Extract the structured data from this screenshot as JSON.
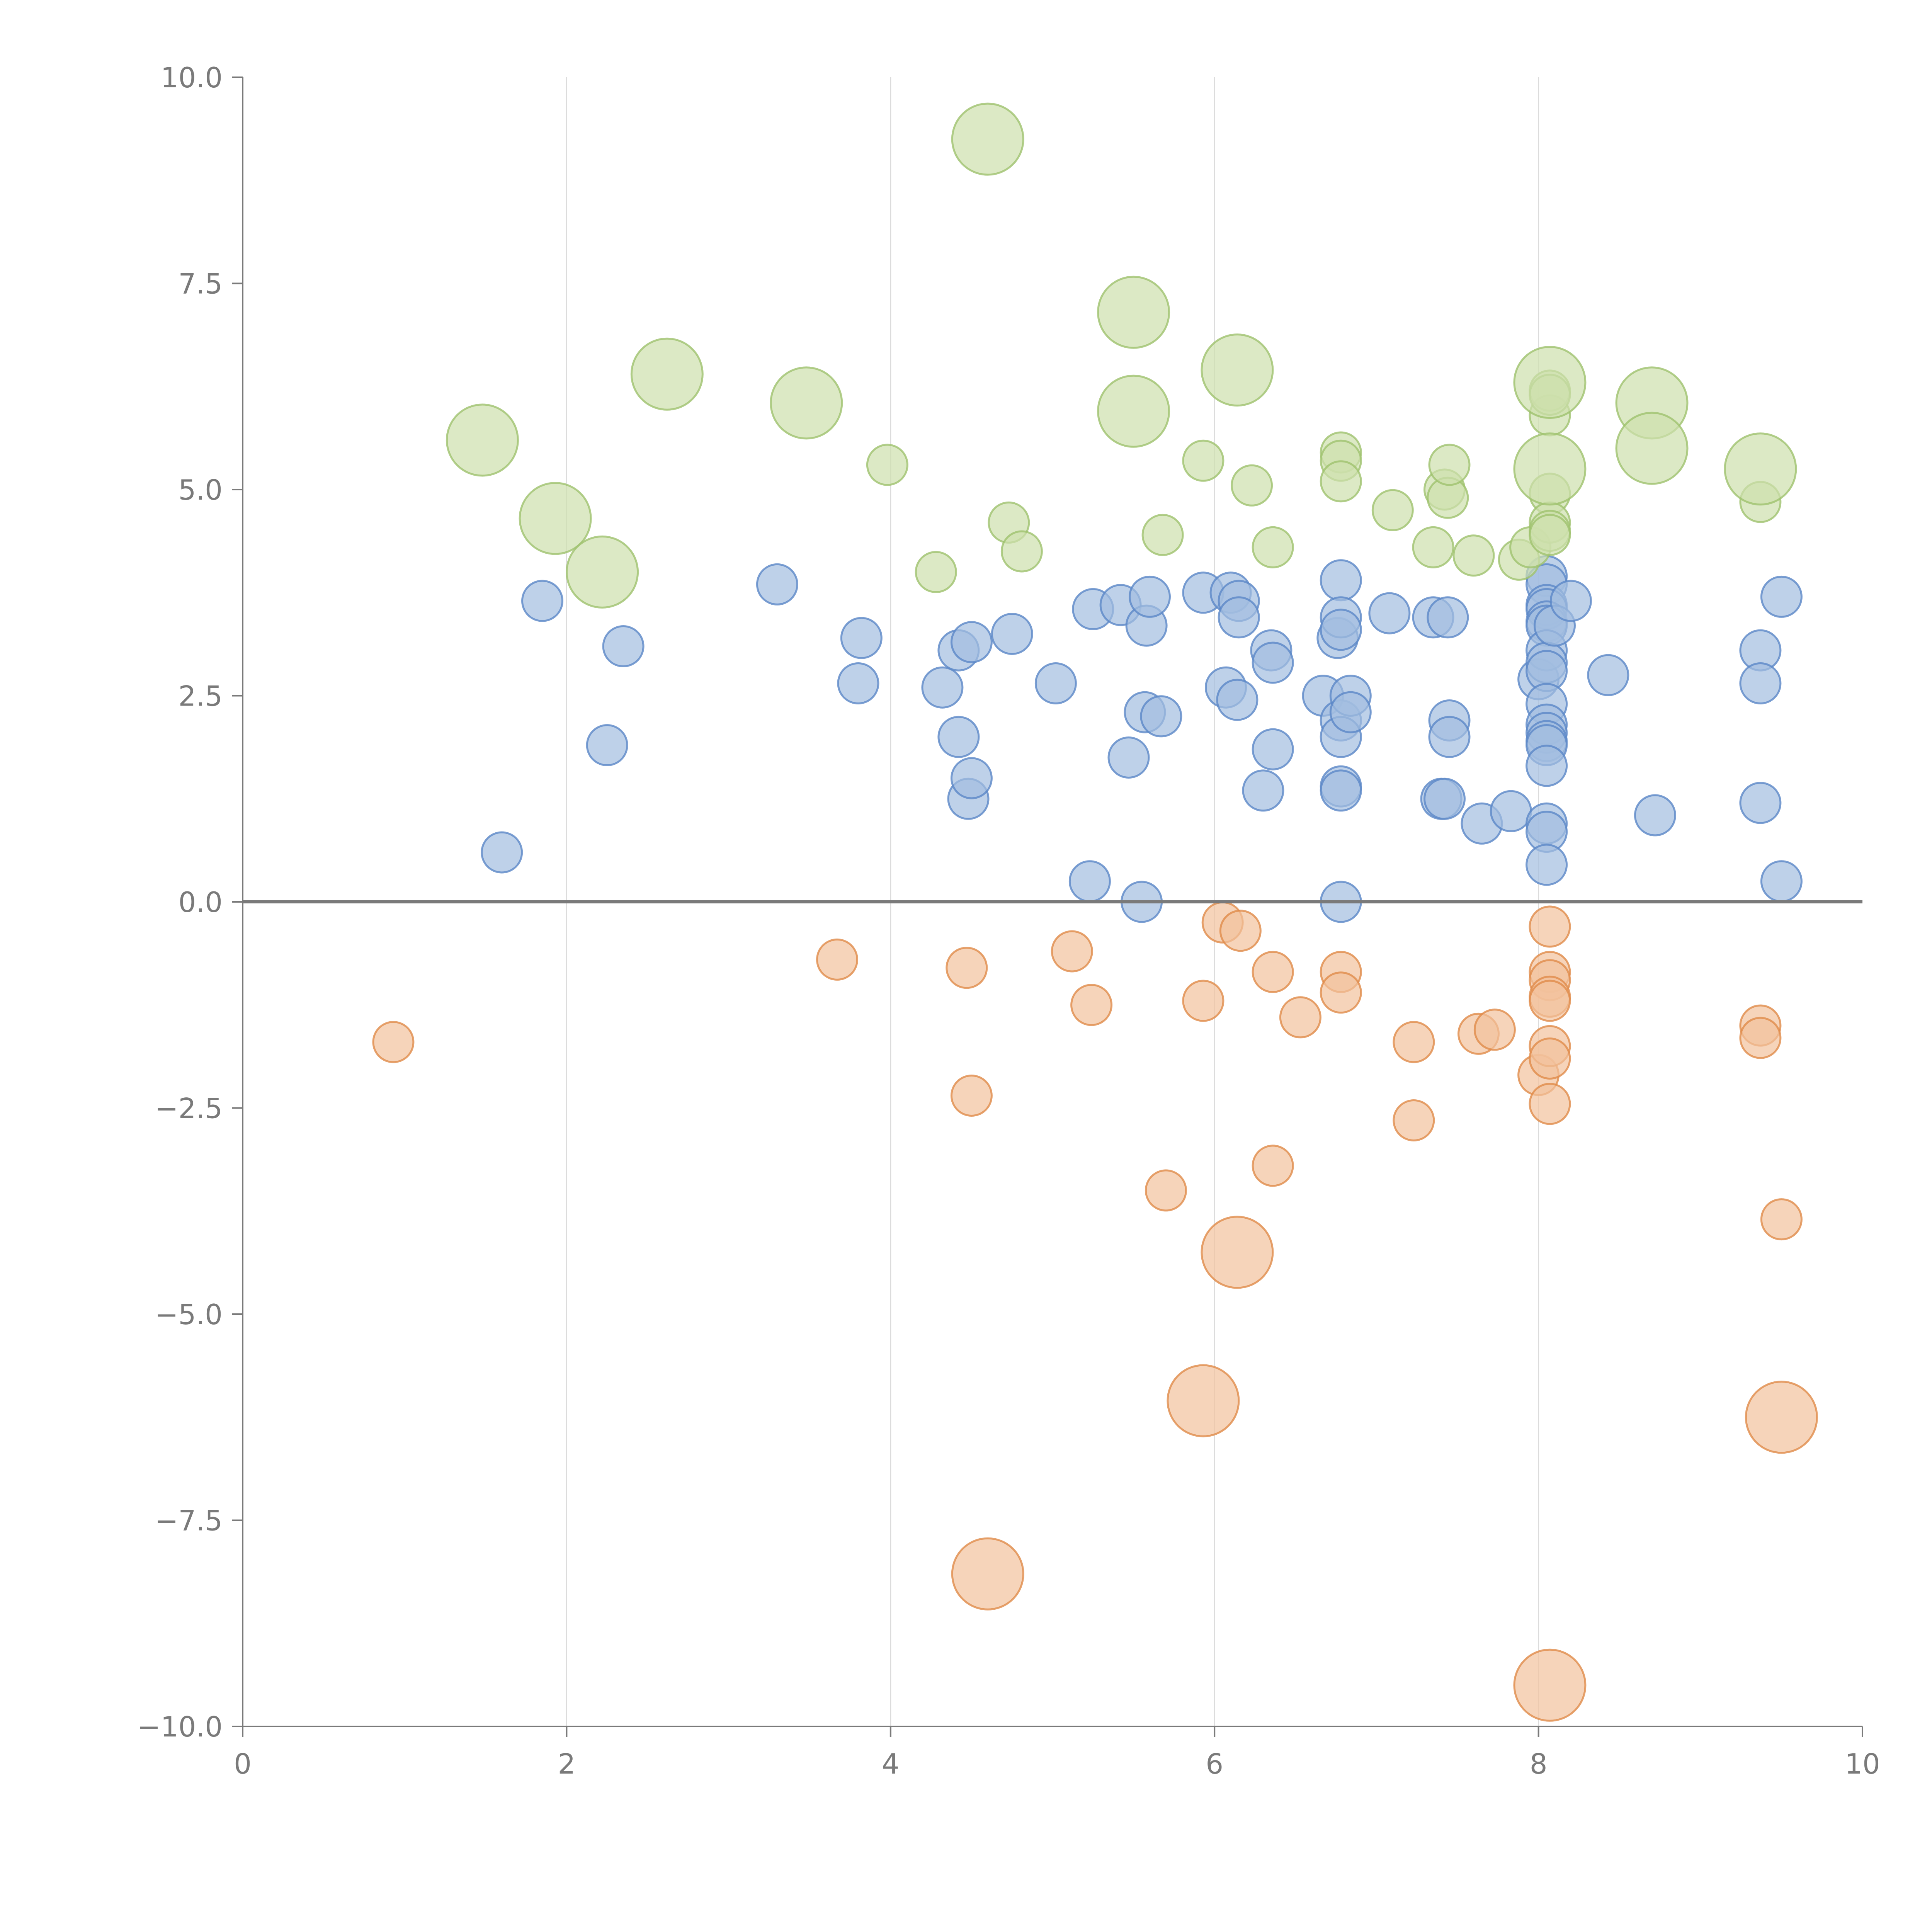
{
  "chart_data": {
    "type": "scatter",
    "title": "",
    "xlabel": "",
    "ylabel": "",
    "xlim": [
      0,
      10
    ],
    "ylim": [
      -10,
      10
    ],
    "grid": "vertical",
    "legend": "none",
    "x_ticks": [
      0,
      2,
      4,
      6,
      8,
      10
    ],
    "x_tick_labels": [
      "0",
      "2",
      "4",
      "6",
      "8",
      "10"
    ],
    "y_ticks": [
      10,
      7.5,
      5,
      2.5,
      0,
      -2.5,
      -5,
      -7.5,
      -10
    ],
    "y_tick_labels": [
      "10.0",
      "7.5",
      "5.0",
      "2.5",
      "0.0",
      "−2.5",
      "−5.0",
      "−7.5",
      "−10.0"
    ],
    "reference_line_y": 0,
    "colors": {
      "positive_fill": "#a3bddf",
      "positive_stroke": "#5b87c7",
      "upper_fill": "#cde0ad",
      "upper_stroke": "#9fc26e",
      "negative_fill": "#f2c29c",
      "negative_stroke": "#e08b4a",
      "axis": "#7a7a7a",
      "grid": "#dcdcdc"
    },
    "series": [
      {
        "name": "positive",
        "color_key": "positive",
        "size": "small",
        "points": [
          [
            1.6,
            0.6
          ],
          [
            1.85,
            3.65
          ],
          [
            2.25,
            1.9
          ],
          [
            2.35,
            3.1
          ],
          [
            3.3,
            3.85
          ],
          [
            3.8,
            2.65
          ],
          [
            3.82,
            3.2
          ],
          [
            4.32,
            2.6
          ],
          [
            4.42,
            3.05
          ],
          [
            4.42,
            2.0
          ],
          [
            4.48,
            1.25
          ],
          [
            4.5,
            1.5
          ],
          [
            4.5,
            3.15
          ],
          [
            4.75,
            3.25
          ],
          [
            5.02,
            2.65
          ],
          [
            5.23,
            0.25
          ],
          [
            5.25,
            3.55
          ],
          [
            5.42,
            3.6
          ],
          [
            5.47,
            1.75
          ],
          [
            5.55,
            0.0
          ],
          [
            5.57,
            2.3
          ],
          [
            5.58,
            3.35
          ],
          [
            5.6,
            3.7
          ],
          [
            5.67,
            2.25
          ],
          [
            5.93,
            3.75
          ],
          [
            6.07,
            2.6
          ],
          [
            6.1,
            3.75
          ],
          [
            6.14,
            2.45
          ],
          [
            6.15,
            3.65
          ],
          [
            6.15,
            3.45
          ],
          [
            6.3,
            1.35
          ],
          [
            6.35,
            3.05
          ],
          [
            6.36,
            2.9
          ],
          [
            6.36,
            1.85
          ],
          [
            6.67,
            2.5
          ],
          [
            6.76,
            3.2
          ],
          [
            6.78,
            3.9
          ],
          [
            6.78,
            3.45
          ],
          [
            6.78,
            3.3
          ],
          [
            6.78,
            2.2
          ],
          [
            6.78,
            2.0
          ],
          [
            6.78,
            1.4
          ],
          [
            6.78,
            1.35
          ],
          [
            6.78,
            0.0
          ],
          [
            6.84,
            2.5
          ],
          [
            6.84,
            2.3
          ],
          [
            7.08,
            3.5
          ],
          [
            7.35,
            3.45
          ],
          [
            7.4,
            1.25
          ],
          [
            7.42,
            1.25
          ],
          [
            7.44,
            3.45
          ],
          [
            7.45,
            2.2
          ],
          [
            7.45,
            2.0
          ],
          [
            7.65,
            0.95
          ],
          [
            7.83,
            1.1
          ],
          [
            8.0,
            2.7
          ],
          [
            8.05,
            3.95
          ],
          [
            8.05,
            3.85
          ],
          [
            8.05,
            3.6
          ],
          [
            8.05,
            3.55
          ],
          [
            8.05,
            3.4
          ],
          [
            8.05,
            3.35
          ],
          [
            8.05,
            3.05
          ],
          [
            8.05,
            2.9
          ],
          [
            8.05,
            2.8
          ],
          [
            8.05,
            2.4
          ],
          [
            8.05,
            2.15
          ],
          [
            8.05,
            2.05
          ],
          [
            8.05,
            1.95
          ],
          [
            8.05,
            1.9
          ],
          [
            8.05,
            1.65
          ],
          [
            8.05,
            0.95
          ],
          [
            8.05,
            0.85
          ],
          [
            8.05,
            0.45
          ],
          [
            8.1,
            3.35
          ],
          [
            8.2,
            3.65
          ],
          [
            8.43,
            2.75
          ],
          [
            8.72,
            1.05
          ],
          [
            9.37,
            3.05
          ],
          [
            9.37,
            2.65
          ],
          [
            9.37,
            1.2
          ],
          [
            9.5,
            3.7
          ],
          [
            9.5,
            0.25
          ]
        ]
      },
      {
        "name": "upper",
        "color_key": "upper",
        "size": "small",
        "points": [
          [
            3.98,
            5.3
          ],
          [
            4.28,
            4.0
          ],
          [
            4.73,
            4.6
          ],
          [
            4.81,
            4.25
          ],
          [
            5.68,
            4.45
          ],
          [
            5.93,
            5.35
          ],
          [
            6.23,
            5.05
          ],
          [
            6.36,
            4.3
          ],
          [
            6.78,
            5.45
          ],
          [
            6.78,
            5.35
          ],
          [
            6.78,
            5.1
          ],
          [
            7.1,
            4.75
          ],
          [
            7.35,
            4.3
          ],
          [
            7.42,
            5.0
          ],
          [
            7.44,
            4.9
          ],
          [
            7.45,
            5.3
          ],
          [
            7.6,
            4.2
          ],
          [
            7.88,
            4.15
          ],
          [
            7.95,
            4.3
          ],
          [
            8.07,
            4.95
          ],
          [
            8.07,
            4.6
          ],
          [
            8.07,
            4.5
          ],
          [
            8.07,
            4.45
          ],
          [
            8.07,
            5.9
          ],
          [
            8.07,
            6.2
          ],
          [
            8.07,
            6.15
          ],
          [
            9.37,
            4.85
          ]
        ]
      },
      {
        "name": "upper-large",
        "color_key": "upper",
        "size": "large",
        "points": [
          [
            1.48,
            5.6
          ],
          [
            1.93,
            4.65
          ],
          [
            2.22,
            4.0
          ],
          [
            2.62,
            6.4
          ],
          [
            3.48,
            6.05
          ],
          [
            4.6,
            9.25
          ],
          [
            5.5,
            7.15
          ],
          [
            5.5,
            5.95
          ],
          [
            6.14,
            6.45
          ],
          [
            8.07,
            6.3
          ],
          [
            8.07,
            5.25
          ],
          [
            8.7,
            6.05
          ],
          [
            8.7,
            5.5
          ],
          [
            9.37,
            5.25
          ]
        ]
      },
      {
        "name": "negative",
        "color_key": "negative",
        "size": "small",
        "points": [
          [
            0.93,
            -1.7
          ],
          [
            3.67,
            -0.7
          ],
          [
            4.47,
            -0.8
          ],
          [
            4.5,
            -2.35
          ],
          [
            5.12,
            -0.6
          ],
          [
            5.24,
            -1.25
          ],
          [
            5.7,
            -3.5
          ],
          [
            5.93,
            -1.2
          ],
          [
            6.05,
            -0.25
          ],
          [
            6.16,
            -0.35
          ],
          [
            6.36,
            -0.85
          ],
          [
            6.36,
            -3.2
          ],
          [
            6.53,
            -1.4
          ],
          [
            6.78,
            -0.85
          ],
          [
            6.78,
            -1.1
          ],
          [
            7.23,
            -1.7
          ],
          [
            7.23,
            -2.65
          ],
          [
            7.63,
            -1.6
          ],
          [
            7.73,
            -1.55
          ],
          [
            8.0,
            -2.1
          ],
          [
            8.07,
            -0.3
          ],
          [
            8.07,
            -0.85
          ],
          [
            8.07,
            -0.95
          ],
          [
            8.07,
            -1.15
          ],
          [
            8.07,
            -1.2
          ],
          [
            8.07,
            -1.75
          ],
          [
            8.07,
            -1.9
          ],
          [
            8.07,
            -2.45
          ],
          [
            9.37,
            -1.5
          ],
          [
            9.37,
            -1.65
          ],
          [
            9.5,
            -3.85
          ]
        ]
      },
      {
        "name": "negative-large",
        "color_key": "negative",
        "size": "large",
        "points": [
          [
            4.6,
            -8.15
          ],
          [
            5.93,
            -6.05
          ],
          [
            6.14,
            -4.25
          ],
          [
            8.07,
            -9.5
          ],
          [
            9.5,
            -6.25
          ]
        ]
      }
    ]
  }
}
